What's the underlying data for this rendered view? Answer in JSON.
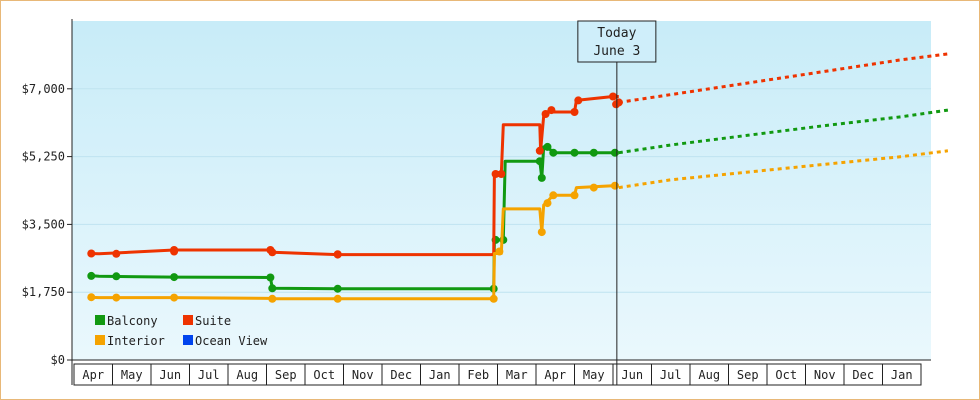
{
  "chart_data": {
    "type": "line",
    "title": "",
    "xlabel": "",
    "ylabel": "",
    "ylim": [
      0,
      8750
    ],
    "y_ticks": [
      {
        "value": 0,
        "label": "$0"
      },
      {
        "value": 1750,
        "label": "$1,750"
      },
      {
        "value": 3500,
        "label": "$3,500"
      },
      {
        "value": 5250,
        "label": "$5,250"
      },
      {
        "value": 7000,
        "label": "$7,000"
      }
    ],
    "x_months": [
      "Apr",
      "May",
      "Jun",
      "Jul",
      "Aug",
      "Sep",
      "Oct",
      "Nov",
      "Dec",
      "Jan",
      "Feb",
      "Mar",
      "Apr",
      "May",
      "Jun",
      "Jul",
      "Aug",
      "Sep",
      "Oct",
      "Nov",
      "Dec",
      "Jan"
    ],
    "today": {
      "line1": "Today",
      "line2": "June 3",
      "month_index": 13.6
    },
    "grid": true,
    "legend_position": "bottom-left",
    "series": [
      {
        "name": "Balcony",
        "color": "#119911",
        "points": [
          [
            -0.1,
            2180
          ],
          [
            0.15,
            2160
          ],
          [
            2.1,
            2140
          ],
          [
            4.6,
            2130
          ],
          [
            4.65,
            1850
          ],
          [
            6.35,
            1840
          ],
          [
            10.4,
            1840
          ],
          [
            10.42,
            3100
          ],
          [
            10.65,
            3100
          ],
          [
            10.7,
            5130
          ],
          [
            11.6,
            5130
          ],
          [
            11.65,
            4700
          ],
          [
            11.7,
            5500
          ],
          [
            11.85,
            5450
          ],
          [
            11.95,
            5350
          ],
          [
            13.5,
            5350
          ],
          [
            13.65,
            5350
          ]
        ],
        "markers": [
          [
            -0.05,
            2170
          ],
          [
            0.6,
            2160
          ],
          [
            2.1,
            2140
          ],
          [
            4.6,
            2130
          ],
          [
            4.65,
            1850
          ],
          [
            6.35,
            1840
          ],
          [
            10.4,
            1840
          ],
          [
            10.45,
            3100
          ],
          [
            10.65,
            3100
          ],
          [
            11.6,
            5130
          ],
          [
            11.65,
            4700
          ],
          [
            11.8,
            5500
          ],
          [
            11.95,
            5350
          ],
          [
            12.5,
            5350
          ],
          [
            13.0,
            5350
          ],
          [
            13.55,
            5350
          ]
        ],
        "forecast": [
          [
            13.65,
            5350
          ],
          [
            15.0,
            5550
          ],
          [
            17.0,
            5800
          ],
          [
            19.0,
            6050
          ],
          [
            21.0,
            6280
          ],
          [
            22.2,
            6450
          ]
        ]
      },
      {
        "name": "Suite",
        "color": "#ee3300",
        "points": [
          [
            -0.1,
            2750
          ],
          [
            0.15,
            2740
          ],
          [
            2.1,
            2840
          ],
          [
            4.6,
            2840
          ],
          [
            4.65,
            2780
          ],
          [
            6.35,
            2720
          ],
          [
            10.4,
            2720
          ],
          [
            10.42,
            4800
          ],
          [
            10.6,
            4800
          ],
          [
            10.65,
            6070
          ],
          [
            11.6,
            6070
          ],
          [
            11.62,
            5400
          ],
          [
            11.7,
            6300
          ],
          [
            11.8,
            6400
          ],
          [
            12.5,
            6400
          ],
          [
            12.55,
            6700
          ],
          [
            13.5,
            6800
          ],
          [
            13.65,
            6800
          ]
        ],
        "markers": [
          [
            -0.05,
            2750
          ],
          [
            0.6,
            2740
          ],
          [
            2.1,
            2800
          ],
          [
            2.1,
            2840
          ],
          [
            4.6,
            2840
          ],
          [
            4.65,
            2780
          ],
          [
            6.35,
            2730
          ],
          [
            6.35,
            2720
          ],
          [
            10.45,
            4800
          ],
          [
            10.6,
            4800
          ],
          [
            11.6,
            5400
          ],
          [
            11.75,
            6350
          ],
          [
            11.9,
            6450
          ],
          [
            12.5,
            6400
          ],
          [
            12.6,
            6700
          ],
          [
            13.5,
            6800
          ],
          [
            13.58,
            6600
          ],
          [
            13.65,
            6650
          ]
        ],
        "forecast": [
          [
            13.65,
            6650
          ],
          [
            15.0,
            6850
          ],
          [
            17.0,
            7150
          ],
          [
            19.0,
            7450
          ],
          [
            21.0,
            7750
          ],
          [
            22.2,
            7900
          ]
        ]
      },
      {
        "name": "Interior",
        "color": "#f5a300",
        "points": [
          [
            -0.1,
            1620
          ],
          [
            0.15,
            1610
          ],
          [
            2.1,
            1610
          ],
          [
            4.6,
            1590
          ],
          [
            4.65,
            1580
          ],
          [
            6.35,
            1580
          ],
          [
            10.4,
            1580
          ],
          [
            10.42,
            2750
          ],
          [
            10.6,
            2750
          ],
          [
            10.65,
            3900
          ],
          [
            11.6,
            3900
          ],
          [
            11.65,
            3300
          ],
          [
            11.7,
            4000
          ],
          [
            11.95,
            4250
          ],
          [
            12.5,
            4250
          ],
          [
            12.55,
            4450
          ],
          [
            13.5,
            4500
          ],
          [
            13.65,
            4500
          ]
        ],
        "markers": [
          [
            -0.05,
            1620
          ],
          [
            0.6,
            1610
          ],
          [
            2.1,
            1610
          ],
          [
            4.65,
            1580
          ],
          [
            6.35,
            1580
          ],
          [
            10.4,
            1580
          ],
          [
            10.55,
            2800
          ],
          [
            11.65,
            3300
          ],
          [
            11.8,
            4050
          ],
          [
            11.95,
            4250
          ],
          [
            12.5,
            4250
          ],
          [
            13.0,
            4450
          ],
          [
            13.55,
            4500
          ]
        ],
        "forecast": [
          [
            13.65,
            4450
          ],
          [
            15.0,
            4650
          ],
          [
            17.0,
            4850
          ],
          [
            19.0,
            5050
          ],
          [
            21.0,
            5250
          ],
          [
            22.2,
            5400
          ]
        ]
      },
      {
        "name": "Ocean View",
        "color": "#0044ee",
        "points": [],
        "markers": [],
        "forecast": []
      }
    ]
  }
}
